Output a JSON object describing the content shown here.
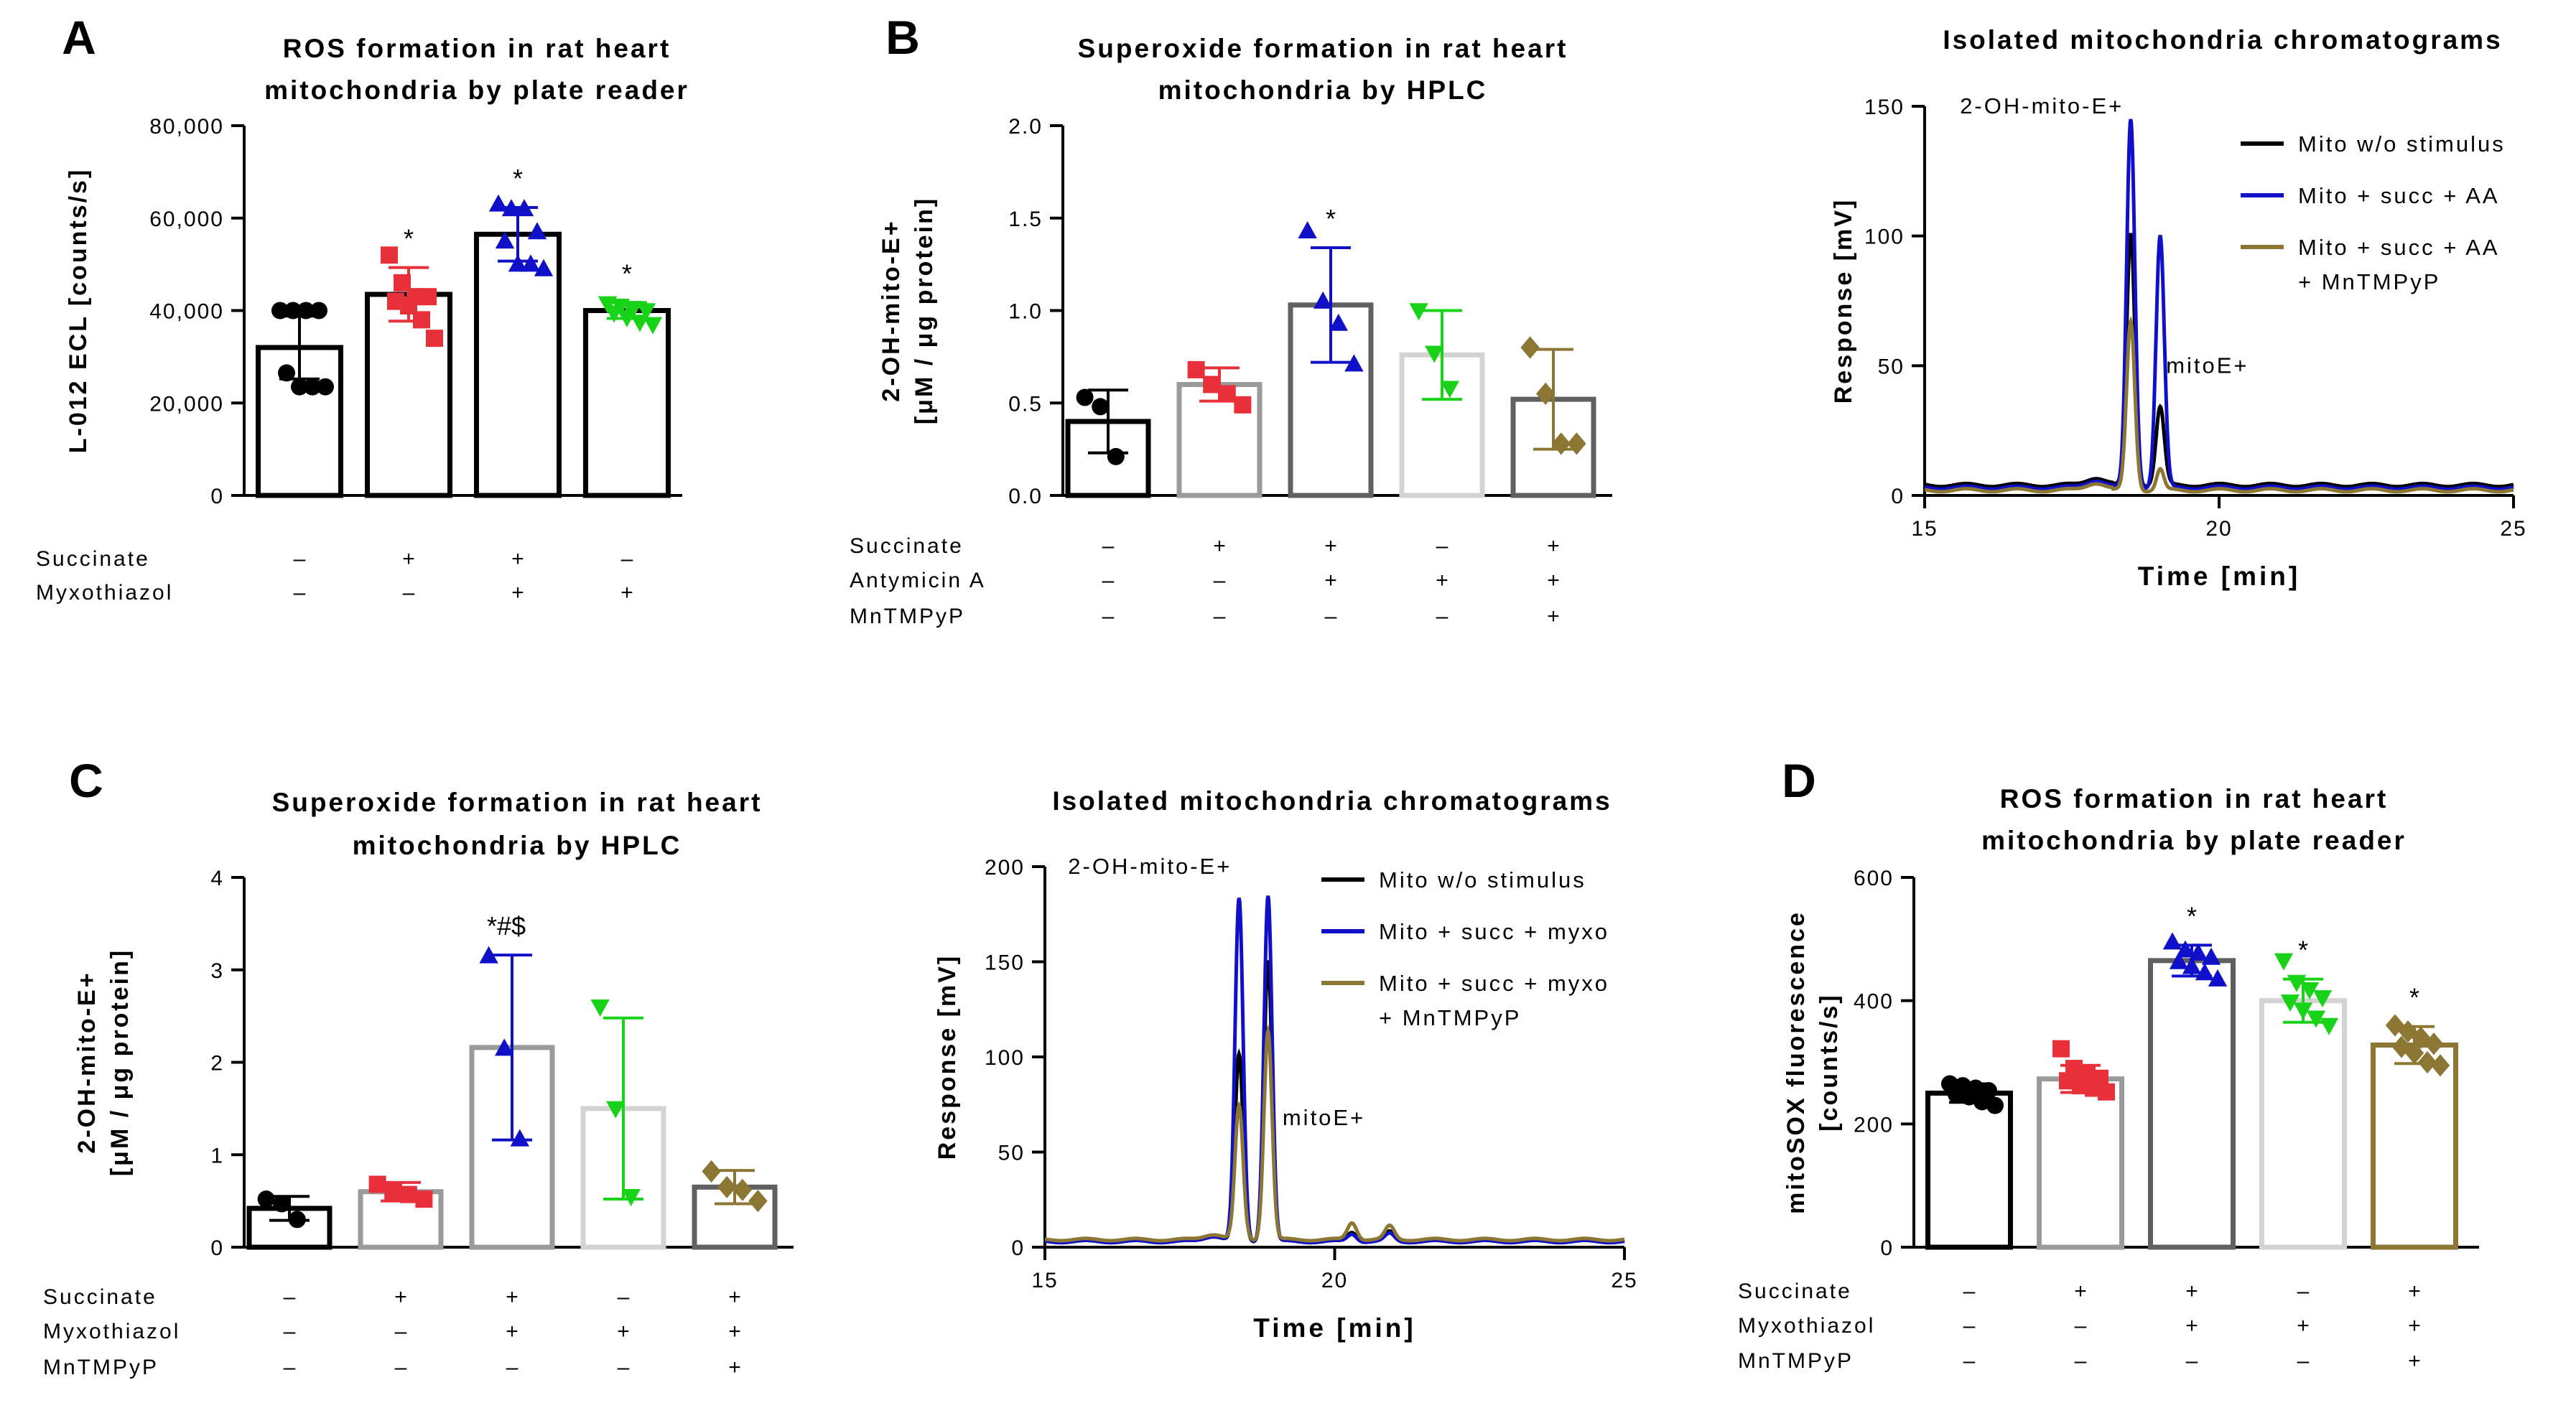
{
  "colors": {
    "black": "#000000",
    "red": "#e8303a",
    "blue": "#1010c8",
    "green": "#19d319",
    "olive": "#8c7634",
    "gray_dark": "#606060",
    "gray_mid": "#9a9a9a",
    "gray_light": "#d3d3d3"
  },
  "chart_data": [
    {
      "id": "A",
      "type": "bar",
      "panel_label": "A",
      "title_lines": [
        "ROS formation in rat heart",
        "mitochondria by plate reader"
      ],
      "ylabel_lines": [
        "L-012 ECL [counts/s]"
      ],
      "ylim": [
        0,
        80000
      ],
      "ticks": [
        0,
        20000,
        40000,
        60000,
        80000
      ],
      "tick_labels": [
        "0",
        "20,000",
        "40,000",
        "60,000",
        "80,000"
      ],
      "bars": [
        {
          "mean": 32000,
          "sd": 6800,
          "points": [
            40000,
            40000,
            40000,
            40000,
            26500,
            23500,
            23500,
            23500
          ],
          "marker": "circle",
          "edge": "black",
          "fill_pts": "black",
          "star": ""
        },
        {
          "mean": 43500,
          "sd": 5800,
          "points": [
            52000,
            46000,
            43000,
            43000,
            42000,
            41000,
            38000,
            34000
          ],
          "marker": "square",
          "edge": "black",
          "fill_pts": "red",
          "star": "*"
        },
        {
          "mean": 56500,
          "sd": 5800,
          "points": [
            63000,
            62000,
            62000,
            57000,
            55000,
            50000,
            50000,
            49000
          ],
          "marker": "triangle-up",
          "edge": "black",
          "fill_pts": "blue",
          "star": "*"
        },
        {
          "mean": 40000,
          "sd": 1700,
          "points": [
            41500,
            41000,
            40500,
            40000,
            39500,
            38500,
            37500,
            37000
          ],
          "marker": "triangle-down",
          "edge": "black",
          "fill_pts": "green",
          "star": "*"
        }
      ],
      "conditions": [
        {
          "label": "Succinate",
          "values": [
            "–",
            "+",
            "+",
            "–"
          ]
        },
        {
          "label": "Myxothiazol",
          "values": [
            "–",
            "–",
            "+",
            "+"
          ]
        }
      ]
    },
    {
      "id": "B1",
      "type": "bar",
      "panel_label": "B",
      "title_lines": [
        "Superoxide formation in rat heart",
        "mitochondria by HPLC"
      ],
      "ylabel_lines": [
        "2-OH-mito-E+",
        "[μM / μg protein]"
      ],
      "ylim": [
        0,
        2.0
      ],
      "ticks": [
        0,
        0.5,
        1.0,
        1.5,
        2.0
      ],
      "tick_labels": [
        "0.0",
        "0.5",
        "1.0",
        "1.5",
        "2.0"
      ],
      "bars": [
        {
          "mean": 0.4,
          "sd": 0.17,
          "points": [
            0.53,
            0.48,
            0.21
          ],
          "marker": "circle",
          "edge": "black",
          "fill_pts": "black",
          "star": ""
        },
        {
          "mean": 0.6,
          "sd": 0.09,
          "points": [
            0.68,
            0.6,
            0.55,
            0.49
          ],
          "marker": "square",
          "edge": "gray_mid",
          "fill_pts": "red",
          "star": ""
        },
        {
          "mean": 1.03,
          "sd": 0.31,
          "points": [
            1.43,
            1.05,
            0.93,
            0.71
          ],
          "marker": "triangle-up",
          "edge": "gray_dark",
          "fill_pts": "blue",
          "star": "*"
        },
        {
          "mean": 0.76,
          "sd": 0.24,
          "points": [
            1.0,
            0.77,
            0.58
          ],
          "marker": "triangle-down",
          "edge": "gray_light",
          "fill_pts": "green",
          "star": ""
        },
        {
          "mean": 0.52,
          "sd": 0.27,
          "points": [
            0.8,
            0.55,
            0.28,
            0.28
          ],
          "marker": "diamond",
          "edge": "gray_dark",
          "fill_pts": "olive",
          "star": ""
        }
      ],
      "conditions": [
        {
          "label": "Succinate",
          "values": [
            "–",
            "+",
            "+",
            "–",
            "+"
          ]
        },
        {
          "label": "Antymicin A",
          "values": [
            "–",
            "–",
            "+",
            "+",
            "+"
          ]
        },
        {
          "label": "MnTMPyP",
          "values": [
            "–",
            "–",
            "–",
            "–",
            "+"
          ]
        }
      ]
    },
    {
      "id": "B2",
      "type": "line",
      "title_lines": [
        "Isolated mitochondria chromatograms"
      ],
      "xlabel": "Time [min]",
      "ylabel_lines": [
        "Response [mV]"
      ],
      "xlim": [
        15,
        25
      ],
      "ylim": [
        0,
        150
      ],
      "xticks": [
        15,
        20,
        25
      ],
      "yticks": [
        0,
        50,
        100,
        150
      ],
      "annotations": [
        {
          "text": "2-OH-mito-E+",
          "x": 15.6,
          "y": 150
        },
        {
          "text": "mitoE+",
          "x": 19.1,
          "y": 50
        }
      ],
      "series": [
        {
          "name": "Mito w/o stimulus",
          "color": "black",
          "baseline": 4,
          "peaks": [
            [
              18.5,
              97,
              0.07
            ],
            [
              19.0,
              30,
              0.07
            ]
          ]
        },
        {
          "name": "Mito + succ + AA",
          "color": "blue",
          "baseline": 3,
          "peaks": [
            [
              18.5,
              142,
              0.07
            ],
            [
              19.0,
              97,
              0.07
            ]
          ]
        },
        {
          "name": "Mito + succ + AA\n+ MnTMPyP",
          "color": "olive",
          "baseline": 2,
          "peaks": [
            [
              18.5,
              65,
              0.07
            ],
            [
              19.0,
              8,
              0.06
            ]
          ]
        }
      ]
    },
    {
      "id": "C1",
      "type": "bar",
      "panel_label": "C",
      "title_lines": [
        "Superoxide formation in rat heart",
        "mitochondria by HPLC"
      ],
      "ylabel_lines": [
        "2-OH-mito-E+",
        "[μM / μg protein]"
      ],
      "ylim": [
        0,
        4
      ],
      "ticks": [
        0,
        1,
        2,
        3,
        4
      ],
      "tick_labels": [
        "0",
        "1",
        "2",
        "3",
        "4"
      ],
      "bars": [
        {
          "mean": 0.42,
          "sd": 0.13,
          "points": [
            0.52,
            0.47,
            0.3
          ],
          "marker": "circle",
          "edge": "black",
          "fill_pts": "black",
          "star": ""
        },
        {
          "mean": 0.6,
          "sd": 0.1,
          "points": [
            0.68,
            0.6,
            0.57,
            0.52
          ],
          "marker": "square",
          "edge": "gray_mid",
          "fill_pts": "red",
          "star": ""
        },
        {
          "mean": 2.16,
          "sd": 1.0,
          "points": [
            3.15,
            2.15,
            1.17
          ],
          "marker": "triangle-up",
          "edge": "gray_mid",
          "fill_pts": "blue",
          "star": "*#$"
        },
        {
          "mean": 1.5,
          "sd": 0.98,
          "points": [
            2.6,
            1.5,
            0.55
          ],
          "marker": "triangle-down",
          "edge": "gray_light",
          "fill_pts": "green",
          "star": ""
        },
        {
          "mean": 0.65,
          "sd": 0.18,
          "points": [
            0.82,
            0.65,
            0.62,
            0.5
          ],
          "marker": "diamond",
          "edge": "gray_dark",
          "fill_pts": "olive",
          "star": ""
        }
      ],
      "conditions": [
        {
          "label": "Succinate",
          "values": [
            "–",
            "+",
            "+",
            "–",
            "+"
          ]
        },
        {
          "label": "Myxothiazol",
          "values": [
            "–",
            "–",
            "+",
            "+",
            "+"
          ]
        },
        {
          "label": "MnTMPyP",
          "values": [
            "–",
            "–",
            "–",
            "–",
            "+"
          ]
        }
      ]
    },
    {
      "id": "C2",
      "type": "line",
      "title_lines": [
        "Isolated mitochondria chromatograms"
      ],
      "xlabel": "Time [min]",
      "ylabel_lines": [
        "Response [mV]"
      ],
      "xlim": [
        15,
        25
      ],
      "ylim": [
        0,
        200
      ],
      "xticks": [
        15,
        20,
        25
      ],
      "yticks": [
        0,
        50,
        100,
        150,
        200
      ],
      "annotations": [
        {
          "text": "2-OH-mito-E+",
          "x": 15.4,
          "y": 200
        },
        {
          "text": "mitoE+",
          "x": 19.1,
          "y": 68
        }
      ],
      "series": [
        {
          "name": "Mito w/o stimulus",
          "color": "black",
          "baseline": 3,
          "peaks": [
            [
              18.35,
              98,
              0.07
            ],
            [
              18.85,
              148,
              0.07
            ],
            [
              20.3,
              5,
              0.08
            ],
            [
              20.95,
              5,
              0.08
            ]
          ]
        },
        {
          "name": "Mito + succ + myxo",
          "color": "blue",
          "baseline": 3,
          "peaks": [
            [
              18.35,
              180,
              0.07
            ],
            [
              18.85,
              182,
              0.07
            ],
            [
              20.3,
              4,
              0.08
            ],
            [
              20.95,
              4,
              0.08
            ]
          ]
        },
        {
          "name": "Mito + succ + myxo\n+ MnTMPyP",
          "color": "olive",
          "baseline": 4,
          "peaks": [
            [
              18.35,
              70,
              0.07
            ],
            [
              18.85,
              110,
              0.07
            ],
            [
              20.3,
              9,
              0.08
            ],
            [
              20.95,
              7,
              0.08
            ]
          ]
        }
      ]
    },
    {
      "id": "D",
      "type": "bar",
      "panel_label": "D",
      "title_lines": [
        "ROS formation in rat heart",
        "mitochondria by plate reader"
      ],
      "ylabel_lines": [
        "mitoSOX fluorescence",
        "[counts/s]"
      ],
      "ylim": [
        0,
        600
      ],
      "ticks": [
        0,
        200,
        400,
        600
      ],
      "tick_labels": [
        "0",
        "200",
        "400",
        "600"
      ],
      "bars": [
        {
          "mean": 250,
          "sd": 15,
          "points": [
            265,
            262,
            258,
            254,
            248,
            244,
            236,
            230
          ],
          "marker": "circle",
          "edge": "black",
          "fill_pts": "black",
          "star": ""
        },
        {
          "mean": 273,
          "sd": 22,
          "points": [
            322,
            290,
            283,
            274,
            270,
            262,
            258,
            252
          ],
          "marker": "square",
          "edge": "gray_mid",
          "fill_pts": "red",
          "star": ""
        },
        {
          "mean": 465,
          "sd": 25,
          "points": [
            495,
            482,
            477,
            470,
            463,
            455,
            445,
            435
          ],
          "marker": "triangle-up",
          "edge": "gray_dark",
          "fill_pts": "blue",
          "star": "*"
        },
        {
          "mean": 400,
          "sd": 35,
          "points": [
            465,
            430,
            418,
            405,
            398,
            385,
            372,
            360
          ],
          "marker": "triangle-down",
          "edge": "gray_light",
          "fill_pts": "green",
          "star": "*"
        },
        {
          "mean": 328,
          "sd": 30,
          "points": [
            360,
            350,
            340,
            330,
            325,
            315,
            300,
            295
          ],
          "marker": "diamond",
          "edge": "olive",
          "fill_pts": "olive",
          "star": "*"
        }
      ],
      "conditions": [
        {
          "label": "Succinate",
          "values": [
            "–",
            "+",
            "+",
            "–",
            "+"
          ]
        },
        {
          "label": "Myxothiazol",
          "values": [
            "–",
            "–",
            "+",
            "+",
            "+"
          ]
        },
        {
          "label": "MnTMPyP",
          "values": [
            "–",
            "–",
            "–",
            "–",
            "+"
          ]
        }
      ]
    }
  ]
}
